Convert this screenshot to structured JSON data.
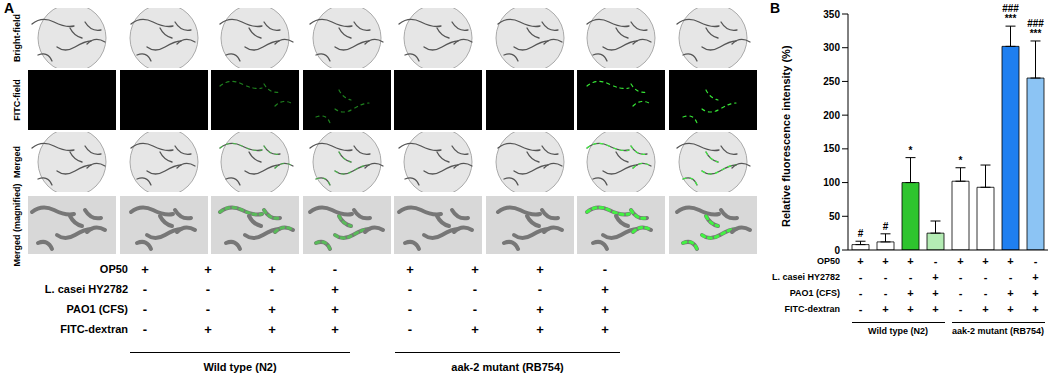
{
  "panel_a": {
    "label": "A",
    "row_labels": [
      "Bright-field",
      "FITC-field",
      "Merged",
      "Merged (magnified)"
    ],
    "conditions": [
      {
        "label": "OP50",
        "marks": [
          "+",
          "+",
          "+",
          "-",
          "+",
          "+",
          "+",
          "-"
        ]
      },
      {
        "label": "L. casei HY2782",
        "marks": [
          "-",
          "-",
          "-",
          "+",
          "-",
          "-",
          "-",
          "+"
        ]
      },
      {
        "label": "PAO1 (CFS)",
        "marks": [
          "-",
          "-",
          "+",
          "+",
          "-",
          "-",
          "+",
          "+"
        ]
      },
      {
        "label": "FITC-dextran",
        "marks": [
          "-",
          "+",
          "+",
          "+",
          "-",
          "+",
          "+",
          "+"
        ]
      }
    ],
    "groups": [
      "Wild type (N2)",
      "aak-2 mutant (RB754)"
    ]
  },
  "chart_data": {
    "type": "bar",
    "panel_label": "B",
    "y_label": "Relative fluorescence intensity (%)",
    "categories": [
      null,
      null,
      null,
      null,
      null,
      null,
      null,
      null
    ],
    "values": [
      8,
      12,
      100,
      25,
      102,
      93,
      302,
      255
    ],
    "errors": [
      5,
      12,
      37,
      18,
      20,
      33,
      30,
      55
    ],
    "colors": [
      "#ffffff",
      "#ffffff",
      "#2ec42e",
      "#b4ecb4",
      "#ffffff",
      "#ffffff",
      "#1f7ff0",
      "#8cc4f4"
    ],
    "annotations": [
      [
        "#"
      ],
      [
        "#"
      ],
      [
        "*"
      ],
      [],
      [
        "*"
      ],
      [],
      [
        "###",
        "***"
      ],
      [
        "###",
        "***"
      ]
    ],
    "ylim": [
      0,
      350
    ],
    "yticks": [
      0,
      50,
      100,
      150,
      200,
      250,
      300,
      350
    ],
    "conditions": [
      {
        "label": "OP50",
        "marks": [
          "+",
          "+",
          "+",
          "-",
          "+",
          "+",
          "+",
          "-"
        ]
      },
      {
        "label": "L. casei HY2782",
        "marks": [
          "-",
          "-",
          "-",
          "+",
          "-",
          "-",
          "-",
          "+"
        ]
      },
      {
        "label": "PAO1 (CFS)",
        "marks": [
          "-",
          "-",
          "+",
          "+",
          "-",
          "-",
          "+",
          "+"
        ]
      },
      {
        "label": "FITC-dextran",
        "marks": [
          "-",
          "+",
          "+",
          "+",
          "-",
          "+",
          "+",
          "+"
        ]
      }
    ],
    "groups": [
      "Wild type (N2)",
      "aak-2 mutant (RB754)"
    ]
  }
}
